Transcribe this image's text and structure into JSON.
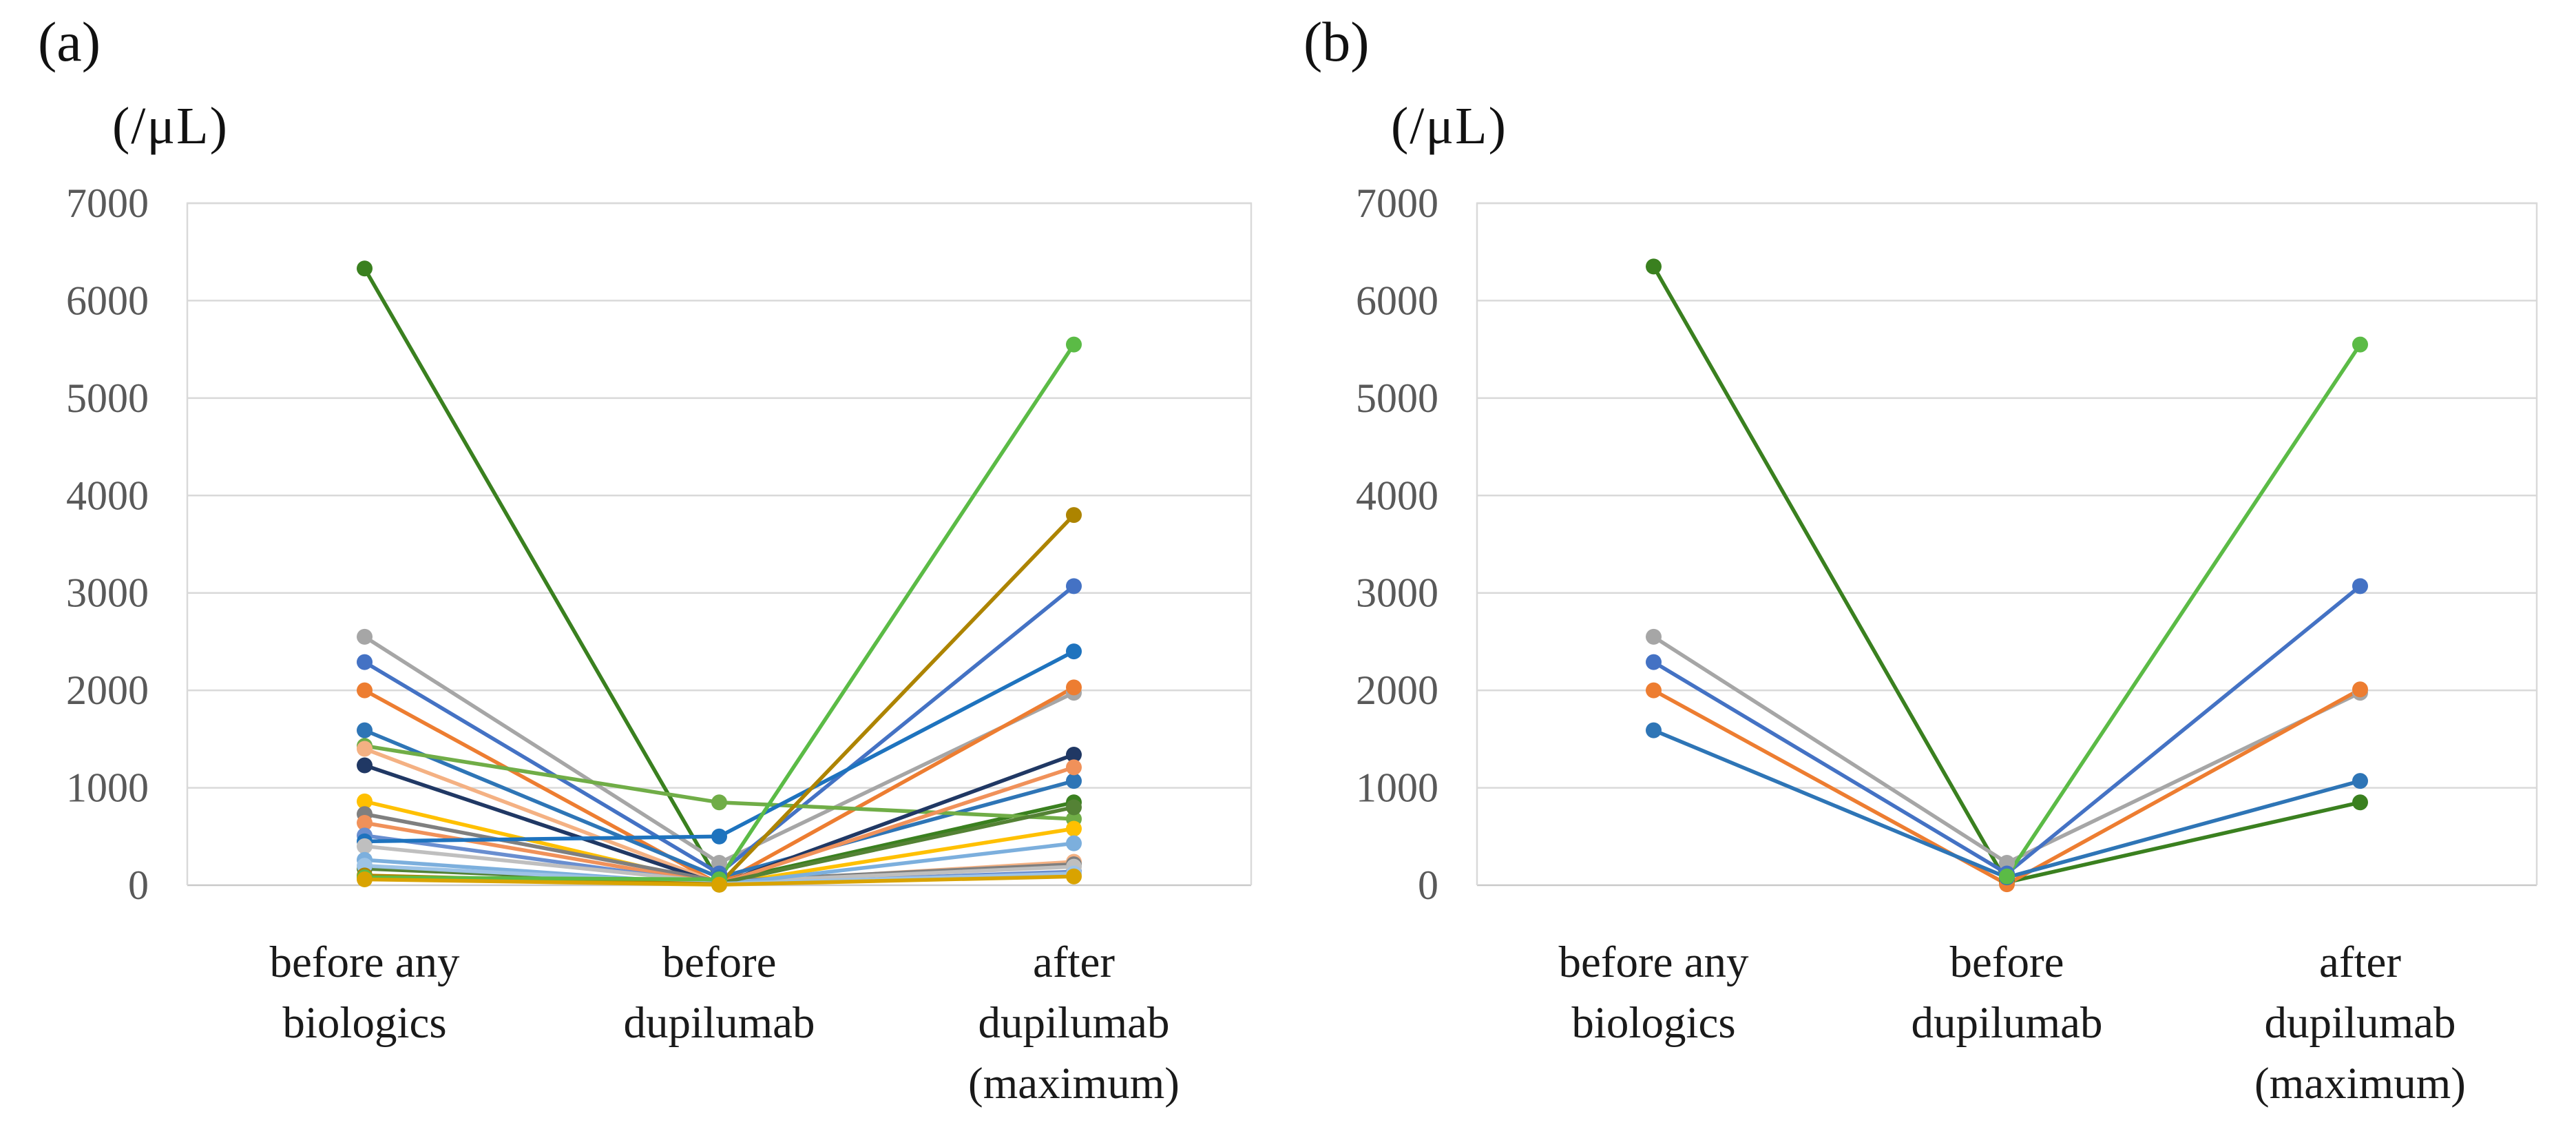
{
  "figure": {
    "description": "Blood eosinophil counts per patient at three timepoints, spaghetti line plots, two panels"
  },
  "chart_data": [
    {
      "type": "line",
      "panel_label": "(a)",
      "y_axis_unit": "(/μL)",
      "categories": [
        "before any\nbiologics",
        "before\ndupilumab",
        "after\ndupilumab\n(maximum)"
      ],
      "ylim": [
        0,
        7000
      ],
      "y_ticks": [
        0,
        1000,
        2000,
        3000,
        4000,
        5000,
        6000,
        7000
      ],
      "grid": true,
      "legend": "none",
      "series": [
        {
          "name": "patient-dark-green",
          "color": "#3A801F",
          "values": [
            6330,
            30,
            850
          ]
        },
        {
          "name": "patient-gray",
          "color": "#A6A6A6",
          "values": [
            2550,
            230,
            1975
          ]
        },
        {
          "name": "patient-blue",
          "color": "#4472C4",
          "values": [
            2290,
            120,
            3070
          ]
        },
        {
          "name": "patient-orange",
          "color": "#ED7D31",
          "values": [
            2000,
            10,
            2030
          ]
        },
        {
          "name": "patient-medium-blue",
          "color": "#2E75B6",
          "values": [
            1590,
            80,
            1070
          ]
        },
        {
          "name": "patient-light-green",
          "color": "#70AD47",
          "values": [
            1430,
            850,
            680
          ]
        },
        {
          "name": "patient-peach",
          "color": "#F4B183",
          "values": [
            1400,
            20,
            240
          ]
        },
        {
          "name": "patient-navy",
          "color": "#203864",
          "values": [
            1230,
            10,
            1340
          ]
        },
        {
          "name": "patient-gold",
          "color": "#FFC000",
          "values": [
            860,
            5,
            580
          ]
        },
        {
          "name": "patient-dark-gray",
          "color": "#7F7F7F",
          "values": [
            730,
            40,
            215
          ]
        },
        {
          "name": "patient-light-orange",
          "color": "#F0915A",
          "values": [
            640,
            15,
            1210
          ]
        },
        {
          "name": "patient-light-cornflower",
          "color": "#698ED0",
          "values": [
            510,
            10,
            140
          ]
        },
        {
          "name": "patient-teal-blue",
          "color": "#1E73BE",
          "values": [
            450,
            500,
            2400
          ]
        },
        {
          "name": "patient-light-gray",
          "color": "#BFBFBF",
          "values": [
            400,
            30,
            190
          ]
        },
        {
          "name": "patient-sky-blue",
          "color": "#7CAFDD",
          "values": [
            260,
            5,
            430
          ]
        },
        {
          "name": "patient-green",
          "color": "#548235",
          "values": [
            170,
            20,
            800
          ]
        },
        {
          "name": "patient-pale-blue",
          "color": "#9DC3E6",
          "values": [
            200,
            15,
            120
          ]
        },
        {
          "name": "patient-dark-gold",
          "color": "#AD8400",
          "values": [
            100,
            10,
            3800
          ]
        },
        {
          "name": "patient-bright-green",
          "color": "#5BBB46",
          "values": [
            80,
            60,
            5550
          ]
        },
        {
          "name": "patient-gold-2",
          "color": "#D9A300",
          "values": [
            60,
            5,
            90
          ]
        }
      ]
    },
    {
      "type": "line",
      "panel_label": "(b)",
      "y_axis_unit": "(/μL)",
      "categories": [
        "before any\nbiologics",
        "before\ndupilumab",
        "after\ndupilumab\n(maximum)"
      ],
      "ylim": [
        0,
        7000
      ],
      "y_ticks": [
        0,
        1000,
        2000,
        3000,
        4000,
        5000,
        6000,
        7000
      ],
      "grid": true,
      "legend": "none",
      "series": [
        {
          "name": "patient-dark-green",
          "color": "#3A801F",
          "values": [
            6350,
            30,
            850
          ]
        },
        {
          "name": "patient-gray",
          "color": "#A6A6A6",
          "values": [
            2550,
            230,
            1975
          ]
        },
        {
          "name": "patient-blue",
          "color": "#4472C4",
          "values": [
            2290,
            120,
            3070
          ]
        },
        {
          "name": "patient-orange",
          "color": "#ED7D31",
          "values": [
            2000,
            10,
            2010
          ]
        },
        {
          "name": "patient-medium-blue",
          "color": "#2E75B6",
          "values": [
            1590,
            80,
            1070
          ]
        },
        {
          "name": "patient-bright-green",
          "color": "#5BBB46",
          "values": [
            null,
            90,
            5550
          ]
        }
      ]
    }
  ],
  "style": {
    "gridline_color": "#D9D9D9",
    "axis_line_color": "#C9C9C9",
    "tick_label_color": "#595959",
    "category_label_color": "#1a1a1a"
  }
}
